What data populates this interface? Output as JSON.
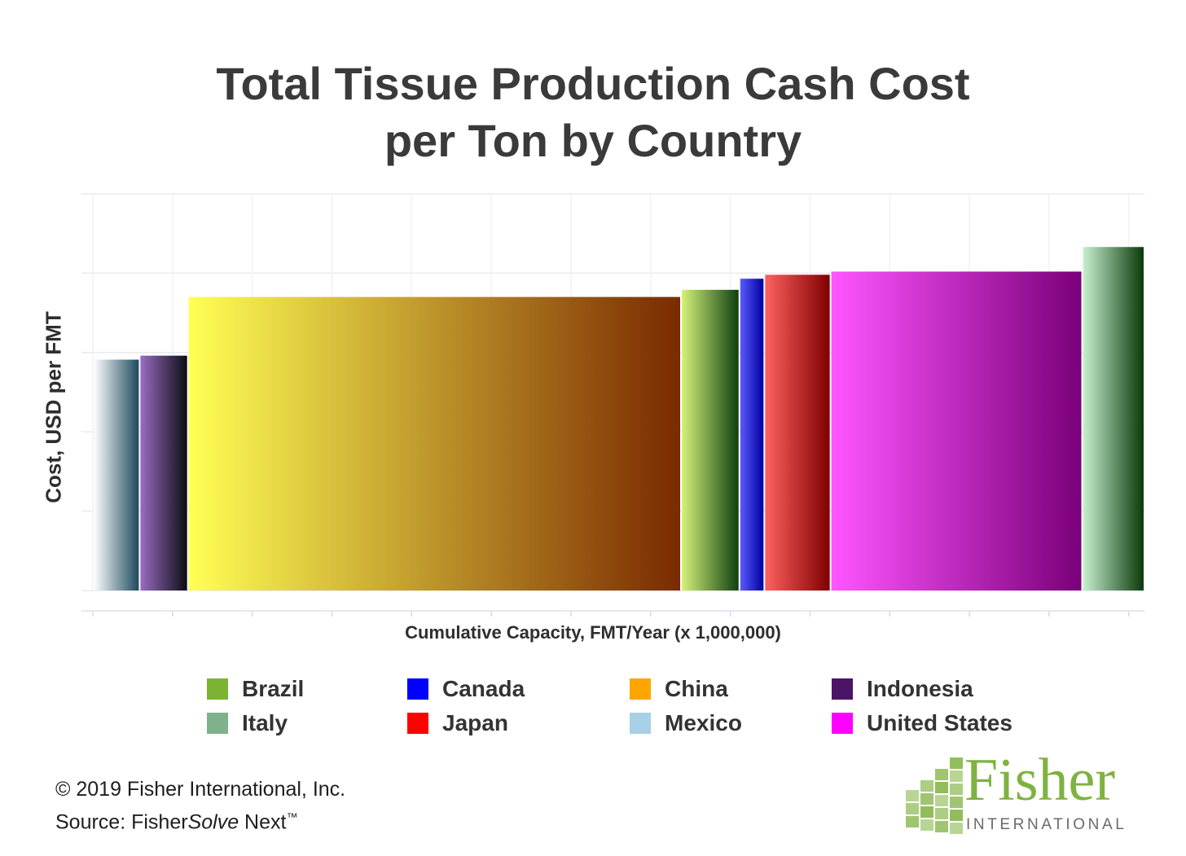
{
  "chart_data": {
    "type": "bar",
    "variant": "cost-curve",
    "title_lines": [
      "Total Tissue Production Cash Cost",
      "per Ton by Country"
    ],
    "xlabel": "Cumulative Capacity, FMT/Year (x 1,000,000)",
    "ylabel": "Cost, USD per FMT",
    "grid": true,
    "legend_position": "bottom",
    "x_tick_count": 14,
    "y_tick_count": 5,
    "xlim": [
      0,
      13.5
    ],
    "ylim": [
      0,
      5.0
    ],
    "series": [
      {
        "name": "Mexico",
        "x_start": 0.0,
        "x_end": 0.6,
        "value": 2.91,
        "colors": [
          "#ffffff",
          "#1d4a5e"
        ]
      },
      {
        "name": "Indonesia",
        "x_start": 0.6,
        "x_end": 1.22,
        "value": 2.96,
        "colors": [
          "#9a6cc2",
          "#0d0d14"
        ]
      },
      {
        "name": "China",
        "x_start": 1.22,
        "x_end": 7.55,
        "value": 3.7,
        "colors": [
          "#ffff55",
          "#7a2a00"
        ]
      },
      {
        "name": "Brazil",
        "x_start": 7.55,
        "x_end": 8.3,
        "value": 3.79,
        "colors": [
          "#d4f27a",
          "#104010"
        ]
      },
      {
        "name": "Canada",
        "x_start": 8.3,
        "x_end": 8.62,
        "value": 3.93,
        "colors": [
          "#5a5aff",
          "#0000a0"
        ]
      },
      {
        "name": "Japan",
        "x_start": 8.62,
        "x_end": 9.47,
        "value": 3.98,
        "colors": [
          "#ff6060",
          "#800000"
        ]
      },
      {
        "name": "United States",
        "x_start": 9.47,
        "x_end": 12.7,
        "value": 4.02,
        "colors": [
          "#ff55ff",
          "#7a007a"
        ]
      },
      {
        "name": "Italy",
        "x_start": 12.7,
        "x_end": 13.5,
        "value": 4.33,
        "colors": [
          "#c8f0d0",
          "#0a3a0a"
        ]
      }
    ]
  },
  "legend": {
    "items": [
      {
        "label": "Brazil",
        "color": "#7cb333"
      },
      {
        "label": "Canada",
        "color": "#0000ff"
      },
      {
        "label": "China",
        "color": "#ffa500"
      },
      {
        "label": "Indonesia",
        "color": "#4b1466"
      },
      {
        "label": "Italy",
        "color": "#7fb28a"
      },
      {
        "label": "Japan",
        "color": "#ff0000"
      },
      {
        "label": "Mexico",
        "color": "#a8d0e6"
      },
      {
        "label": "United States",
        "color": "#ff00ff"
      }
    ]
  },
  "footer": {
    "copyright": "© 2019 Fisher International, Inc.",
    "source_prefix": "Source: Fisher",
    "source_italic": "Solve",
    "source_suffix": " Next",
    "trademark": "™"
  },
  "logo": {
    "word": "Fisher",
    "sub": "INTERNATIONAL",
    "green": "#7fb240"
  }
}
